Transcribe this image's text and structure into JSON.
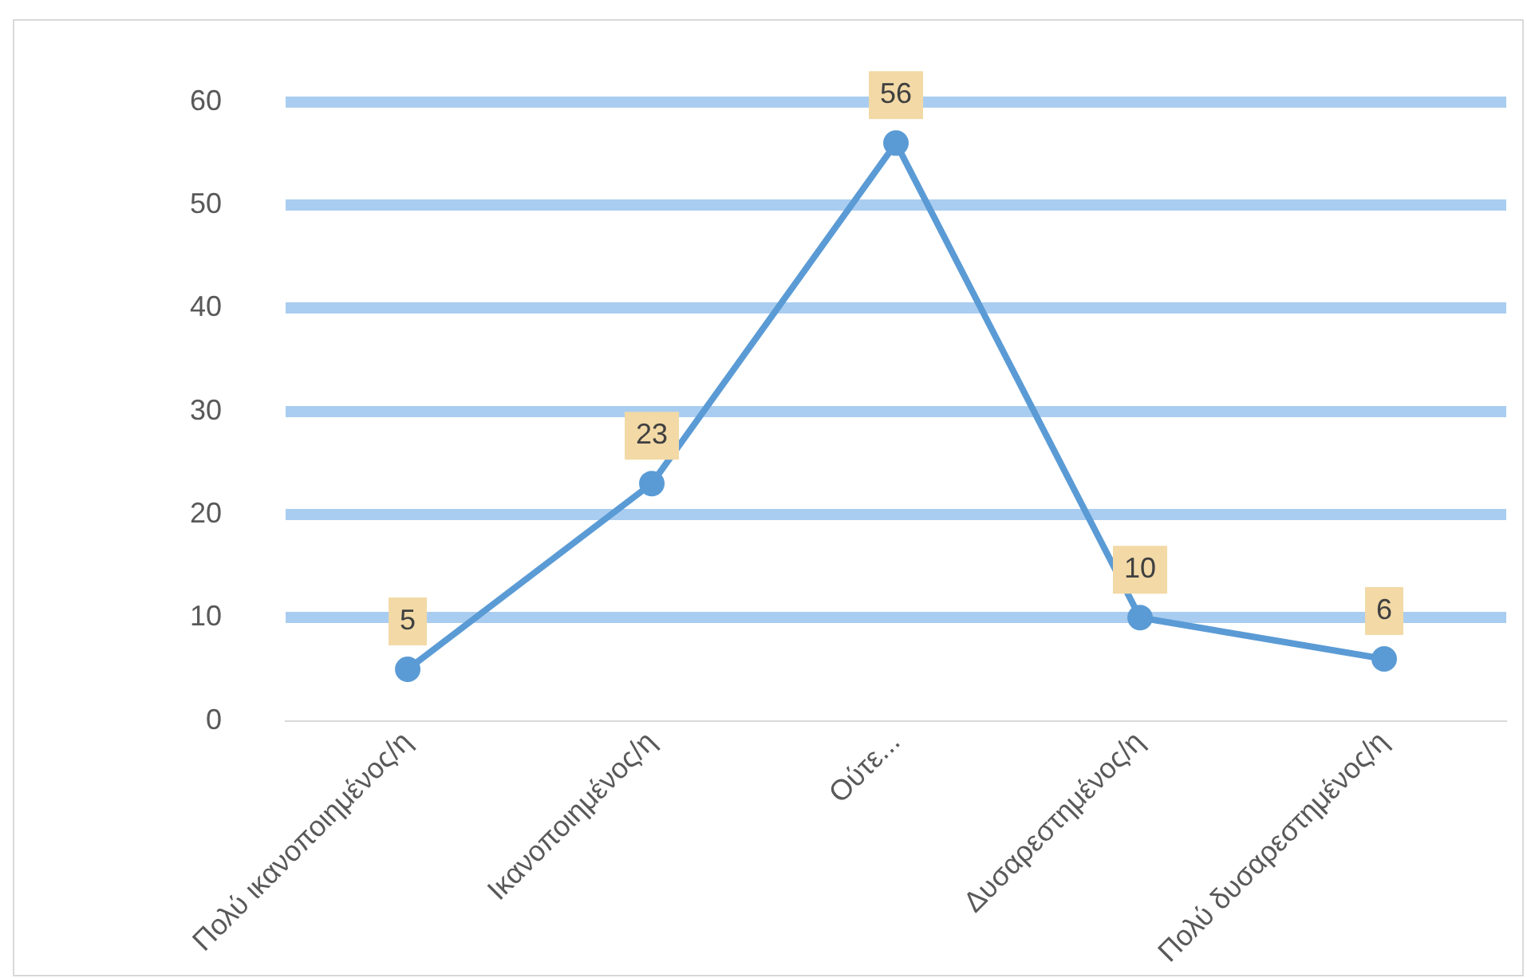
{
  "chart_data": {
    "type": "line",
    "categories": [
      "Πολύ ικανοποιημένος/η",
      "Ικανοποιημένος/η",
      "Ούτε...",
      "Δυσαρεστημένος/η",
      "Πολύ δυσαρεστημένος/η"
    ],
    "series": [
      {
        "color": "#5b9bd5",
        "values": [
          5,
          23,
          56,
          10,
          6
        ]
      }
    ],
    "ylim": [
      0,
      60
    ],
    "yticks": [
      0,
      10,
      20,
      30,
      40,
      50,
      60
    ],
    "grid": "y",
    "legend": false,
    "marker": "circle",
    "line_style": "solid",
    "data_labels": true
  }
}
